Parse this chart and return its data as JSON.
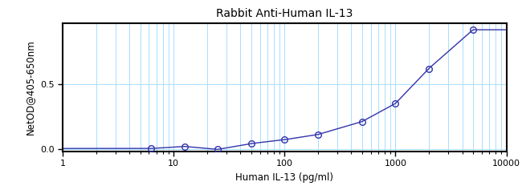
{
  "title": "Rabbit Anti-Human IL-13",
  "xlabel": "Human IL-13 (pg/ml)",
  "ylabel": "NetOD@405-650nm",
  "xlim": [
    1,
    10000
  ],
  "ylim": [
    -0.02,
    0.97
  ],
  "yticks": [
    0.0,
    0.5
  ],
  "data_x": [
    6.25,
    12.5,
    25,
    50,
    100,
    200,
    500,
    1000,
    2000,
    5000
  ],
  "data_y": [
    0.002,
    0.018,
    -0.005,
    0.04,
    0.07,
    0.11,
    0.21,
    0.35,
    0.62,
    0.92
  ],
  "curve_color": "#3333aa",
  "marker_color": "#3333aa",
  "grid_color": "#aaddff",
  "background_color": "#ffffff",
  "title_fontsize": 10,
  "label_fontsize": 8.5,
  "tick_fontsize": 8
}
